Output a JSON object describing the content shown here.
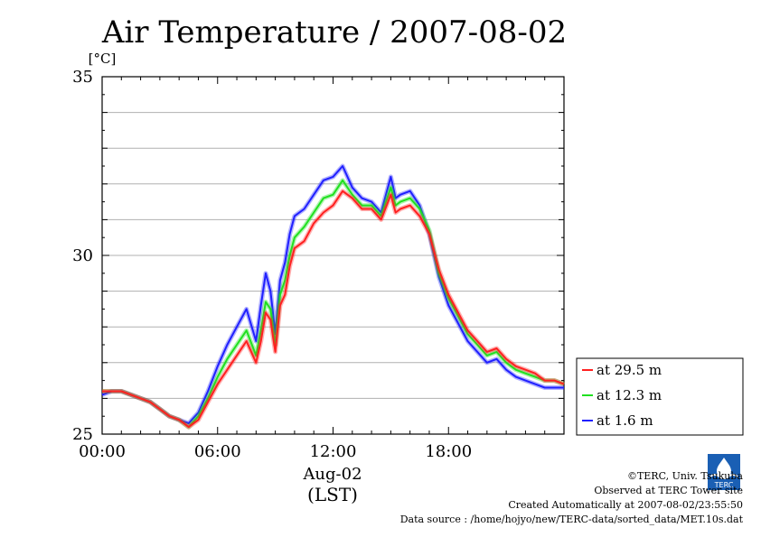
{
  "chart_data": {
    "type": "line",
    "title": "Air Temperature / 2007-08-02",
    "ylabel": "[°C]",
    "xlabel_date": "Aug-02",
    "xlabel_tz": "(LST)",
    "ylim": [
      25,
      35
    ],
    "xlim_hours": [
      0,
      24
    ],
    "yticks": [
      "25",
      "30",
      "35"
    ],
    "xticks": [
      "00:00",
      "06:00",
      "12:00",
      "18:00"
    ],
    "grid": "horizontal every 1 °C",
    "legend_position": "right-bottom",
    "x_hours": [
      0,
      0.5,
      1,
      1.5,
      2,
      2.5,
      3,
      3.5,
      4,
      4.5,
      5,
      5.5,
      6,
      6.5,
      7,
      7.5,
      8,
      8.25,
      8.5,
      8.75,
      9,
      9.25,
      9.5,
      9.75,
      10,
      10.5,
      11,
      11.5,
      12,
      12.5,
      13,
      13.5,
      14,
      14.5,
      15,
      15.25,
      15.5,
      16,
      16.5,
      17,
      17.5,
      18,
      18.5,
      19,
      19.5,
      20,
      20.5,
      21,
      21.5,
      22,
      22.5,
      23,
      23.5,
      24
    ],
    "series": [
      {
        "name": "at 29.5 m",
        "color": "#ff2020",
        "values": [
          26.2,
          26.2,
          26.2,
          26.1,
          26.0,
          25.9,
          25.7,
          25.5,
          25.4,
          25.2,
          25.4,
          25.9,
          26.4,
          26.8,
          27.2,
          27.6,
          27.0,
          27.6,
          28.4,
          28.2,
          27.3,
          28.6,
          28.9,
          29.7,
          30.2,
          30.4,
          30.9,
          31.2,
          31.4,
          31.8,
          31.6,
          31.3,
          31.3,
          31.0,
          31.7,
          31.2,
          31.3,
          31.4,
          31.1,
          30.6,
          29.6,
          28.9,
          28.4,
          27.9,
          27.6,
          27.3,
          27.4,
          27.1,
          26.9,
          26.8,
          26.7,
          26.5,
          26.5,
          26.4
        ]
      },
      {
        "name": "at 12.3 m",
        "color": "#20e020",
        "values": [
          26.2,
          26.2,
          26.2,
          26.1,
          26.0,
          25.9,
          25.7,
          25.5,
          25.4,
          25.2,
          25.5,
          26.0,
          26.6,
          27.1,
          27.5,
          27.9,
          27.2,
          27.9,
          28.7,
          28.5,
          27.5,
          28.9,
          29.3,
          30.0,
          30.5,
          30.8,
          31.2,
          31.6,
          31.7,
          32.1,
          31.7,
          31.4,
          31.4,
          31.1,
          31.9,
          31.4,
          31.5,
          31.6,
          31.3,
          30.7,
          29.5,
          28.8,
          28.3,
          27.8,
          27.5,
          27.2,
          27.3,
          27.0,
          26.8,
          26.7,
          26.6,
          26.5,
          26.5,
          26.4
        ]
      },
      {
        "name": "at 1.6 m",
        "color": "#2020ff",
        "values": [
          26.1,
          26.2,
          26.2,
          26.1,
          26.0,
          25.9,
          25.7,
          25.5,
          25.4,
          25.3,
          25.6,
          26.2,
          26.9,
          27.5,
          28.0,
          28.5,
          27.6,
          28.6,
          29.5,
          29.0,
          27.8,
          29.3,
          29.8,
          30.6,
          31.1,
          31.3,
          31.7,
          32.1,
          32.2,
          32.5,
          31.9,
          31.6,
          31.5,
          31.2,
          32.2,
          31.6,
          31.7,
          31.8,
          31.4,
          30.6,
          29.4,
          28.6,
          28.1,
          27.6,
          27.3,
          27.0,
          27.1,
          26.8,
          26.6,
          26.5,
          26.4,
          26.3,
          26.3,
          26.3
        ]
      }
    ]
  },
  "footer": {
    "copyright": "©TERC, Univ. Tsukuba",
    "site": "Observed at TERC Tower site",
    "created": "Created Automatically at 2007-08-02/23:55:50",
    "source": "Data source : /home/hojyo/new/TERC-data/sorted_data/MET.10s.dat"
  },
  "logo_text": "TERC"
}
